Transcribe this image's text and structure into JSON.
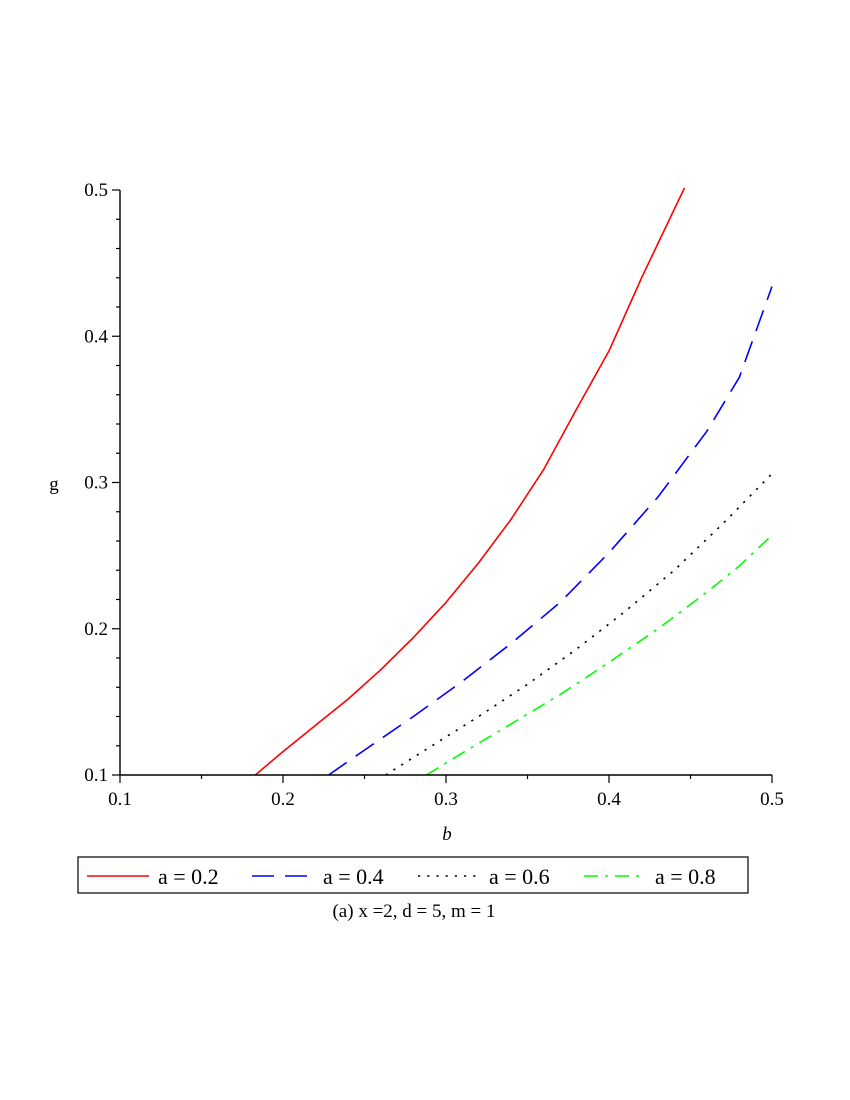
{
  "chart_data": {
    "type": "line",
    "xlabel": "b",
    "ylabel": "g",
    "xlim": [
      0.1,
      0.5
    ],
    "ylim": [
      0.1,
      0.5
    ],
    "x_ticks": [
      "0.1",
      "0.2",
      "0.3",
      "0.4",
      "0.5"
    ],
    "y_ticks": [
      "0.1",
      "0.2",
      "0.3",
      "0.4",
      "0.5"
    ],
    "grid": false,
    "legend_position": "bottom",
    "caption": "(a) x =2, d = 5, m = 1",
    "series": [
      {
        "name": "a = 0.2",
        "color": "#ff0000",
        "dash": "solid",
        "x": [
          0.183,
          0.2,
          0.22,
          0.24,
          0.26,
          0.28,
          0.3,
          0.32,
          0.34,
          0.36,
          0.38,
          0.4,
          0.42,
          0.435,
          0.447
        ],
        "y": [
          0.1,
          0.116,
          0.134,
          0.152,
          0.172,
          0.194,
          0.218,
          0.245,
          0.275,
          0.309,
          0.35,
          0.39,
          0.44,
          0.475,
          0.503
        ]
      },
      {
        "name": "a = 0.4",
        "color": "#0000ff",
        "dash": "long-dash",
        "x": [
          0.228,
          0.25,
          0.28,
          0.31,
          0.34,
          0.37,
          0.4,
          0.43,
          0.46,
          0.48,
          0.5
        ],
        "y": [
          0.1,
          0.117,
          0.14,
          0.164,
          0.19,
          0.218,
          0.252,
          0.29,
          0.335,
          0.372,
          0.434
        ]
      },
      {
        "name": "a = 0.6",
        "color": "#000000",
        "dash": "dot",
        "x": [
          0.263,
          0.29,
          0.32,
          0.35,
          0.38,
          0.41,
          0.44,
          0.47,
          0.5
        ],
        "y": [
          0.1,
          0.119,
          0.14,
          0.162,
          0.186,
          0.212,
          0.24,
          0.272,
          0.306
        ]
      },
      {
        "name": "a = 0.8",
        "color": "#00ff00",
        "dash": "dash-dot",
        "x": [
          0.288,
          0.31,
          0.34,
          0.37,
          0.4,
          0.43,
          0.46,
          0.48,
          0.5
        ],
        "y": [
          0.1,
          0.115,
          0.135,
          0.155,
          0.177,
          0.2,
          0.225,
          0.243,
          0.264
        ]
      }
    ]
  }
}
